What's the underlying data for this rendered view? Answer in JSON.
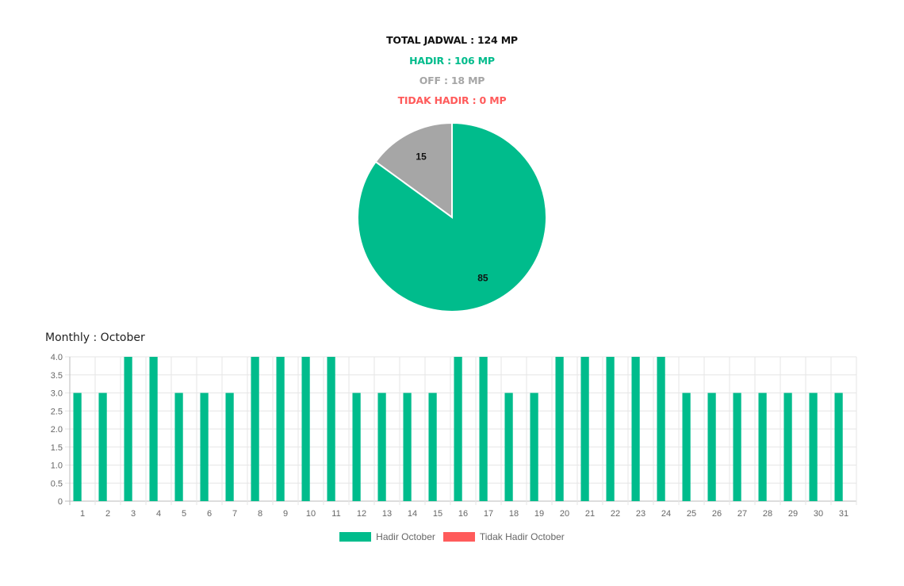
{
  "summary": {
    "total": "TOTAL JADWAL : 124 MP",
    "hadir": "HADIR : 106 MP",
    "off": "OFF : 18 MP",
    "tidak_hadir": "TIDAK HADIR : 0 MP"
  },
  "colors": {
    "hadir": "#00BC8C",
    "off": "#A6A6A6",
    "tidak_hadir": "#FF5B5B",
    "text": "#111111"
  },
  "monthly_title": "Monthly : October",
  "chart_data": [
    {
      "type": "pie",
      "slices": [
        {
          "label": "OFF",
          "value": 15,
          "color": "#A6A6A6"
        },
        {
          "label": "HADIR",
          "value": 85,
          "color": "#00BC8C"
        }
      ]
    },
    {
      "type": "bar",
      "categories": [
        "1",
        "2",
        "3",
        "4",
        "5",
        "6",
        "7",
        "8",
        "9",
        "10",
        "11",
        "12",
        "13",
        "14",
        "15",
        "16",
        "17",
        "18",
        "19",
        "20",
        "21",
        "22",
        "23",
        "24",
        "25",
        "26",
        "27",
        "28",
        "29",
        "30",
        "31"
      ],
      "series": [
        {
          "name": "Hadir October",
          "color": "#00BC8C",
          "values": [
            3,
            3,
            4,
            4,
            3,
            3,
            3,
            4,
            4,
            4,
            4,
            3,
            3,
            3,
            3,
            4,
            4,
            3,
            3,
            4,
            4,
            4,
            4,
            4,
            3,
            3,
            3,
            3,
            3,
            3,
            3
          ]
        },
        {
          "name": "Tidak Hadir October",
          "color": "#FF5B5B",
          "values": [
            0,
            0,
            0,
            0,
            0,
            0,
            0,
            0,
            0,
            0,
            0,
            0,
            0,
            0,
            0,
            0,
            0,
            0,
            0,
            0,
            0,
            0,
            0,
            0,
            0,
            0,
            0,
            0,
            0,
            0,
            0
          ]
        }
      ],
      "ylim": [
        0,
        4.0
      ],
      "y_ticks": [
        "0",
        "0.5",
        "1.0",
        "1.5",
        "2.0",
        "2.5",
        "3.0",
        "3.5",
        "4.0"
      ],
      "grid": true,
      "legend": "bottom"
    }
  ]
}
